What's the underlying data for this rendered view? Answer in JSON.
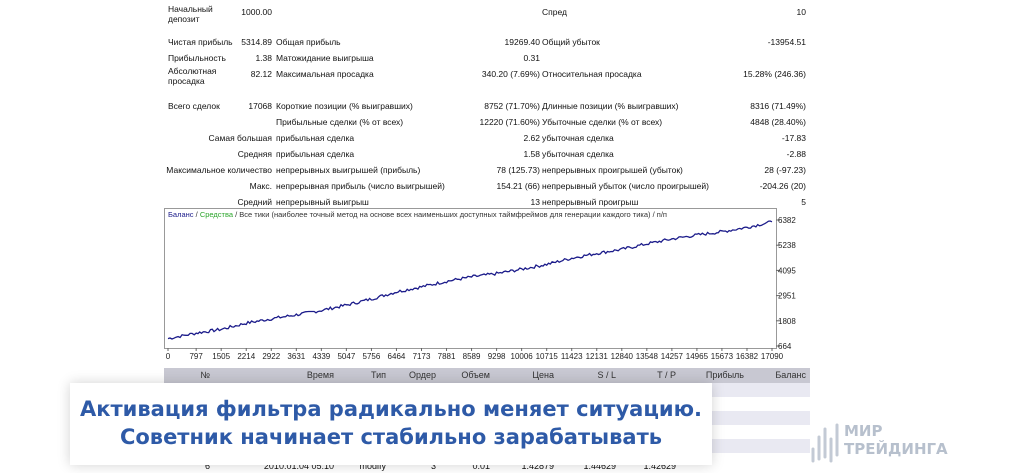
{
  "report": {
    "rows": [
      {
        "y": 0,
        "cells": [
          {
            "text": "Начальный\nдепозит",
            "x": 4
          },
          {
            "text": "1000.00",
            "xr": 108
          },
          {
            "text": "Спред",
            "x": 378
          },
          {
            "text": "10",
            "xr": 642
          }
        ]
      },
      {
        "y": 30,
        "cells": [
          {
            "text": "Чистая прибыль",
            "x": 4
          },
          {
            "text": "5314.89",
            "xr": 108
          },
          {
            "text": "Общая прибыль",
            "x": 112
          },
          {
            "text": "19269.40",
            "xr": 376
          },
          {
            "text": "Общий убыток",
            "x": 378
          },
          {
            "text": "-13954.51",
            "xr": 642
          }
        ]
      },
      {
        "y": 46,
        "cells": [
          {
            "text": "Прибыльность",
            "x": 4
          },
          {
            "text": "1.38",
            "xr": 108
          },
          {
            "text": "Матожидание выигрыша",
            "x": 112
          },
          {
            "text": "0.31",
            "xr": 376
          }
        ]
      },
      {
        "y": 62,
        "cells": [
          {
            "text": "Абсолютная\nпросадка",
            "x": 4
          },
          {
            "text": "82.12",
            "xr": 108
          },
          {
            "text": "Максимальная просадка",
            "x": 112
          },
          {
            "text": "340.20 (7.69%)",
            "xr": 376
          },
          {
            "text": "Относительная просадка",
            "x": 378
          },
          {
            "text": "15.28% (246.36)",
            "xr": 642
          }
        ]
      },
      {
        "y": 94,
        "cells": [
          {
            "text": "Всего сделок",
            "x": 4
          },
          {
            "text": "17068",
            "xr": 108
          },
          {
            "text": "Короткие позиции (% выигравших)",
            "x": 112
          },
          {
            "text": "8752 (71.70%)",
            "xr": 376
          },
          {
            "text": "Длинные позиции (% выигравших)",
            "x": 378
          },
          {
            "text": "8316 (71.49%)",
            "xr": 642
          }
        ]
      },
      {
        "y": 110,
        "cells": [
          {
            "text": "Прибыльные сделки (% от всех)",
            "x": 112
          },
          {
            "text": "12220 (71.60%)",
            "xr": 376
          },
          {
            "text": "Убыточные сделки (% от всех)",
            "x": 378
          },
          {
            "text": "4848 (28.40%)",
            "xr": 642
          }
        ]
      },
      {
        "y": 126,
        "cells": [
          {
            "text": "Самая большая",
            "xr": 108
          },
          {
            "text": "прибыльная сделка",
            "x": 112
          },
          {
            "text": "2.62",
            "xr": 376
          },
          {
            "text": "убыточная сделка",
            "x": 378
          },
          {
            "text": "-17.83",
            "xr": 642
          }
        ]
      },
      {
        "y": 142,
        "cells": [
          {
            "text": "Средняя",
            "xr": 108
          },
          {
            "text": "прибыльная сделка",
            "x": 112
          },
          {
            "text": "1.58",
            "xr": 376
          },
          {
            "text": "убыточная сделка",
            "x": 378
          },
          {
            "text": "-2.88",
            "xr": 642
          }
        ]
      },
      {
        "y": 158,
        "cells": [
          {
            "text": "Максимальное количество",
            "xr": 108
          },
          {
            "text": "непрерывных выигрышей (прибыль)",
            "x": 112
          },
          {
            "text": "78 (125.73)",
            "xr": 376
          },
          {
            "text": "непрерывных проигрышей (убыток)",
            "x": 378
          },
          {
            "text": "28 (-97.23)",
            "xr": 642
          }
        ]
      },
      {
        "y": 174,
        "cells": [
          {
            "text": "Макс.",
            "xr": 108
          },
          {
            "text": "непрерывная прибыль (число выигрышей)",
            "x": 112
          },
          {
            "text": "154.21 (66)",
            "xr": 376
          },
          {
            "text": "непрерывный убыток (число проигрышей)",
            "x": 378
          },
          {
            "text": "-204.26 (20)",
            "xr": 642
          }
        ]
      },
      {
        "y": 190,
        "cells": [
          {
            "text": "Средний",
            "xr": 108
          },
          {
            "text": "непрерывный выигрыш",
            "x": 112
          },
          {
            "text": "13",
            "xr": 376
          },
          {
            "text": "непрерывный проигрыш",
            "x": 378
          },
          {
            "text": "5",
            "xr": 642
          }
        ]
      }
    ]
  },
  "chart_data": {
    "type": "line",
    "title": "",
    "legend": {
      "balance": "Баланс",
      "sep1": " / ",
      "equity": "Средства",
      "rest": " / Все тики (наиболее точный метод на основе всех наименьших доступных таймфреймов для генерации каждого тика) / п/п"
    },
    "x_ticks": [
      0,
      797,
      1505,
      2214,
      2922,
      3631,
      4339,
      5047,
      5756,
      6464,
      7173,
      7881,
      8589,
      9298,
      10006,
      10715,
      11423,
      12131,
      12840,
      13548,
      14257,
      14965,
      15673,
      16382,
      17090
    ],
    "y_ticks": [
      664,
      1808,
      2951,
      4095,
      5238,
      6382
    ],
    "xlim": [
      0,
      17090
    ],
    "ylim": [
      664,
      6382
    ],
    "series": [
      {
        "name": "Баланс",
        "color": "#1b1b8a",
        "points": [
          [
            0,
            1000
          ],
          [
            797,
            1250
          ],
          [
            1505,
            1420
          ],
          [
            2214,
            1700
          ],
          [
            2922,
            1900
          ],
          [
            3631,
            2080
          ],
          [
            4339,
            2280
          ],
          [
            5047,
            2520
          ],
          [
            5756,
            2800
          ],
          [
            6464,
            3120
          ],
          [
            7173,
            3350
          ],
          [
            7881,
            3600
          ],
          [
            8589,
            3800
          ],
          [
            9298,
            3950
          ],
          [
            10006,
            4150
          ],
          [
            10715,
            4370
          ],
          [
            11423,
            4650
          ],
          [
            12131,
            4870
          ],
          [
            12840,
            5050
          ],
          [
            13548,
            5300
          ],
          [
            14257,
            5520
          ],
          [
            14965,
            5700
          ],
          [
            15673,
            5850
          ],
          [
            16382,
            6050
          ],
          [
            17090,
            6300
          ]
        ]
      }
    ],
    "colors": {
      "balance": "#1b1b8a",
      "equity": "#2aa52a",
      "legend_text": "#333333"
    }
  },
  "trades": {
    "headers": [
      {
        "label": "№",
        "xr": 46
      },
      {
        "label": "Время",
        "xr": 170
      },
      {
        "label": "Тип",
        "xr": 222
      },
      {
        "label": "Ордер",
        "xr": 272
      },
      {
        "label": "Объем",
        "xr": 326
      },
      {
        "label": "Цена",
        "xr": 390
      },
      {
        "label": "S / L",
        "xr": 452
      },
      {
        "label": "T / P",
        "xr": 512
      },
      {
        "label": "Прибыль",
        "xr": 580
      },
      {
        "label": "Баланс",
        "xr": 642
      }
    ],
    "last_row": [
      "6",
      "2010.01.04 05:10",
      "modify",
      "3",
      "0.01",
      "1.42879",
      "1.44629",
      "1.42629",
      "",
      ""
    ]
  },
  "banner": {
    "line1": "Активация фильтра радикально меняет ситуацию.",
    "line2": "Советник начинает стабильно зарабатывать"
  },
  "logo": {
    "line1": "МИР",
    "line2": "ТРЕЙДИНГА"
  }
}
